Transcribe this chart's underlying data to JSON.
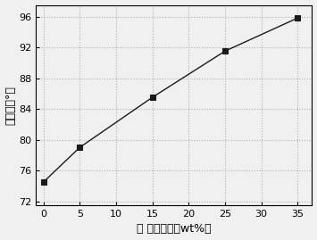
{
  "x": [
    0,
    5,
    15,
    25,
    35
  ],
  "y": [
    74.5,
    79.0,
    85.5,
    91.5,
    95.8
  ],
  "xlabel": "蕮 麳油含量（wt%）",
  "ylabel": "接触角（°）",
  "xlim": [
    -1,
    37
  ],
  "ylim": [
    71.5,
    97.5
  ],
  "xticks": [
    0,
    5,
    10,
    15,
    20,
    25,
    30,
    35
  ],
  "yticks": [
    72,
    76,
    80,
    84,
    88,
    92,
    96
  ],
  "line_color": "#1a1a1a",
  "marker": "s",
  "marker_color": "#1a1a1a",
  "marker_size": 4,
  "grid": true,
  "grid_color": "#b0b0b0",
  "grid_style": ":",
  "bg_color": "#f0f0f0",
  "tick_fontsize": 8,
  "label_fontsize": 9
}
